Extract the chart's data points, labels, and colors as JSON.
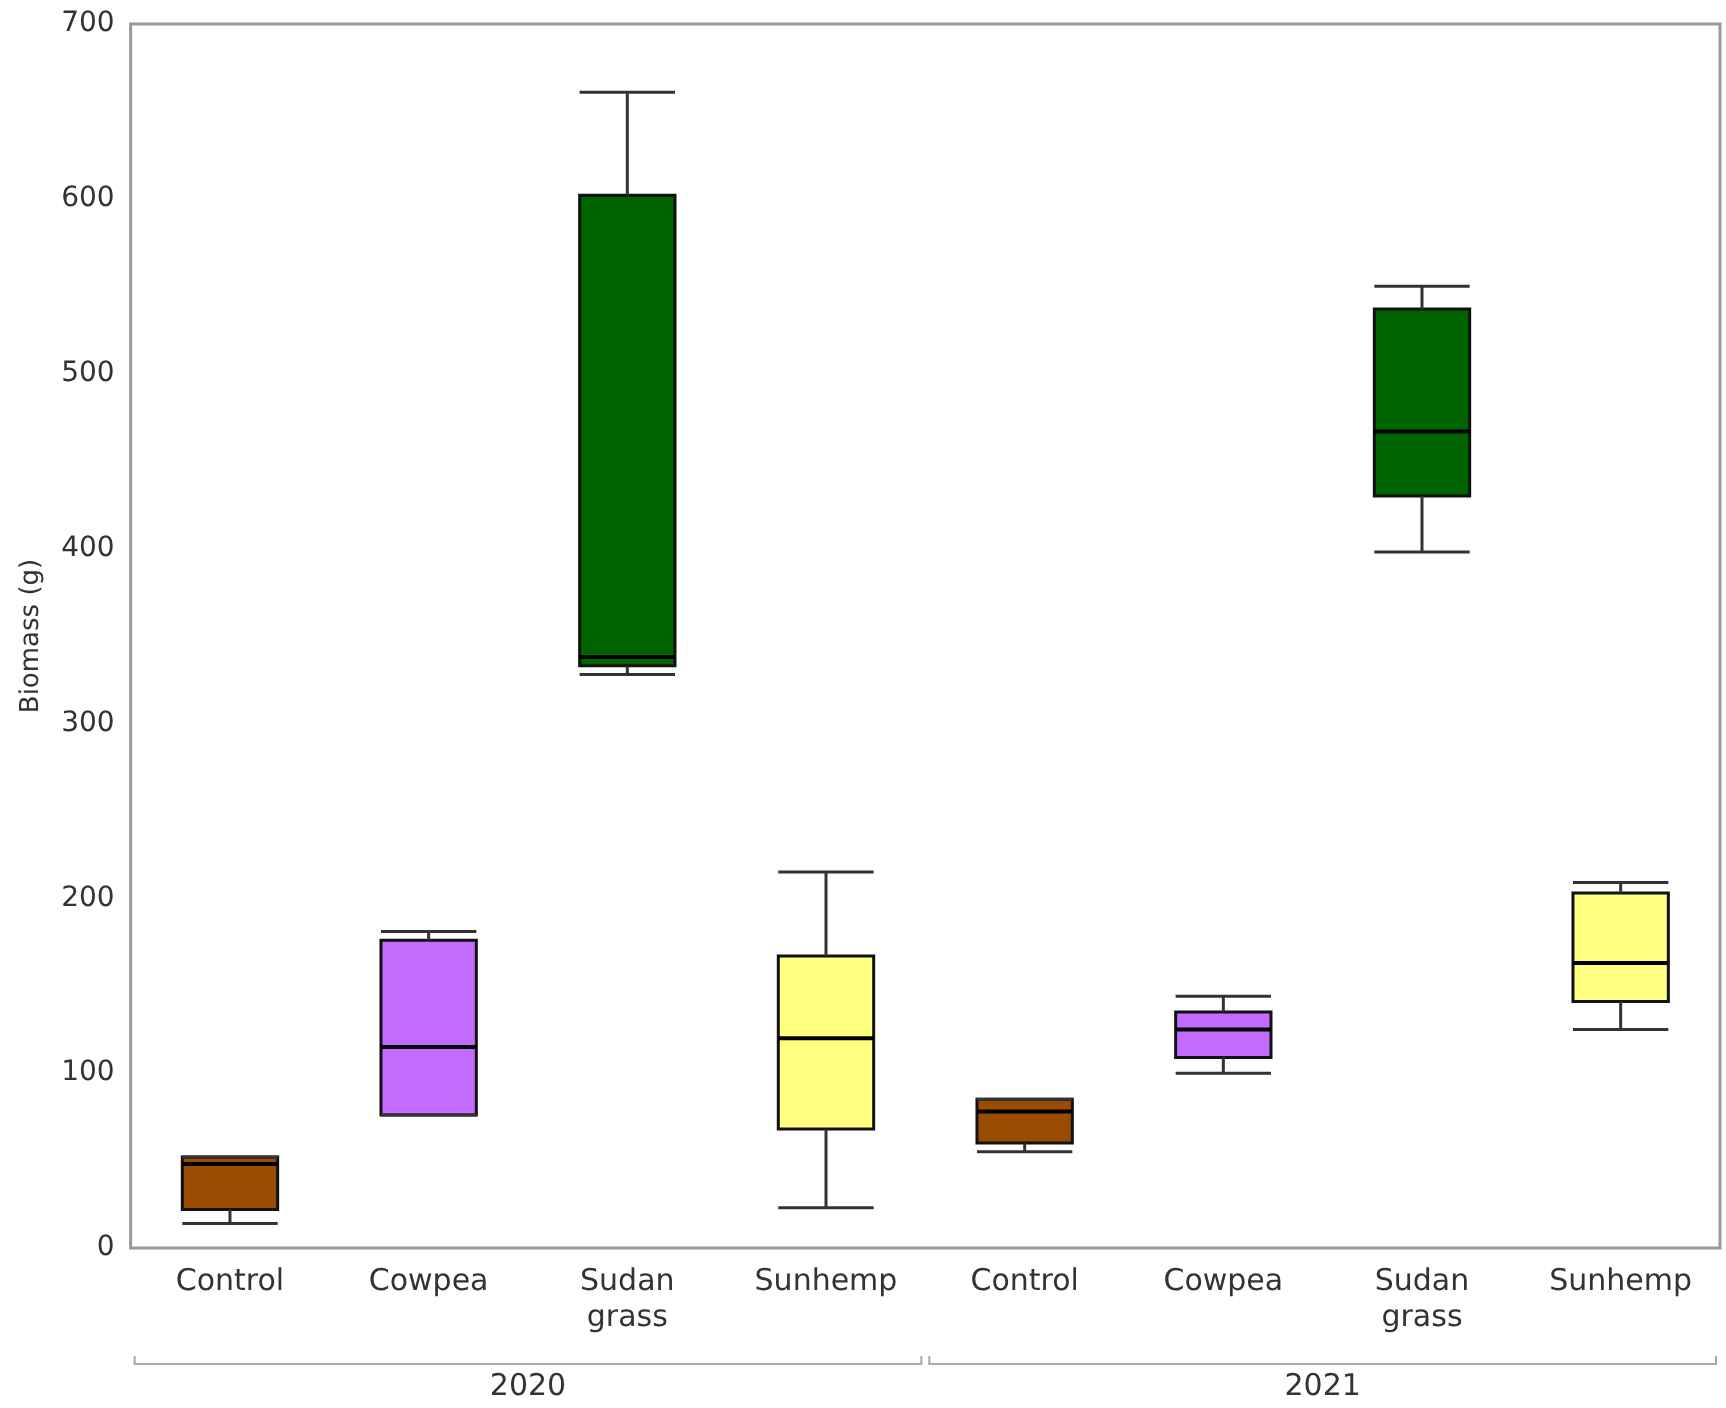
{
  "chart_data": {
    "type": "box",
    "ylabel": "Biomass (g)",
    "categories": [
      "Control",
      "Cowpea",
      "Sudan grass",
      "Sunhemp",
      "Control",
      "Cowpea",
      "Sudan grass",
      "Sunhemp"
    ],
    "colors": [
      "#994c00",
      "#c36bff",
      "#006400",
      "#ffff80",
      "#994c00",
      "#c36bff",
      "#006400",
      "#ffff80"
    ],
    "boxes": [
      {
        "low": 14,
        "q1": 22,
        "median": 48,
        "q3": 52,
        "high": 52
      },
      {
        "low": 76,
        "q1": 76,
        "median": 115,
        "q3": 176,
        "high": 181
      },
      {
        "low": 328,
        "q1": 333,
        "median": 338,
        "q3": 602,
        "high": 661
      },
      {
        "low": 23,
        "q1": 68,
        "median": 120,
        "q3": 167,
        "high": 215
      },
      {
        "low": 55,
        "q1": 60,
        "median": 78,
        "q3": 85,
        "high": 85
      },
      {
        "low": 100,
        "q1": 109,
        "median": 125,
        "q3": 135,
        "high": 144
      },
      {
        "low": 398,
        "q1": 430,
        "median": 467,
        "q3": 537,
        "high": 550
      },
      {
        "low": 125,
        "q1": 141,
        "median": 163,
        "q3": 203,
        "high": 209
      }
    ],
    "ylim": [
      0,
      700
    ],
    "yticks": [
      0,
      100,
      200,
      300,
      400,
      500,
      600,
      700
    ],
    "annotations": [
      "2020",
      "2021"
    ],
    "grid": false,
    "legend": false
  }
}
